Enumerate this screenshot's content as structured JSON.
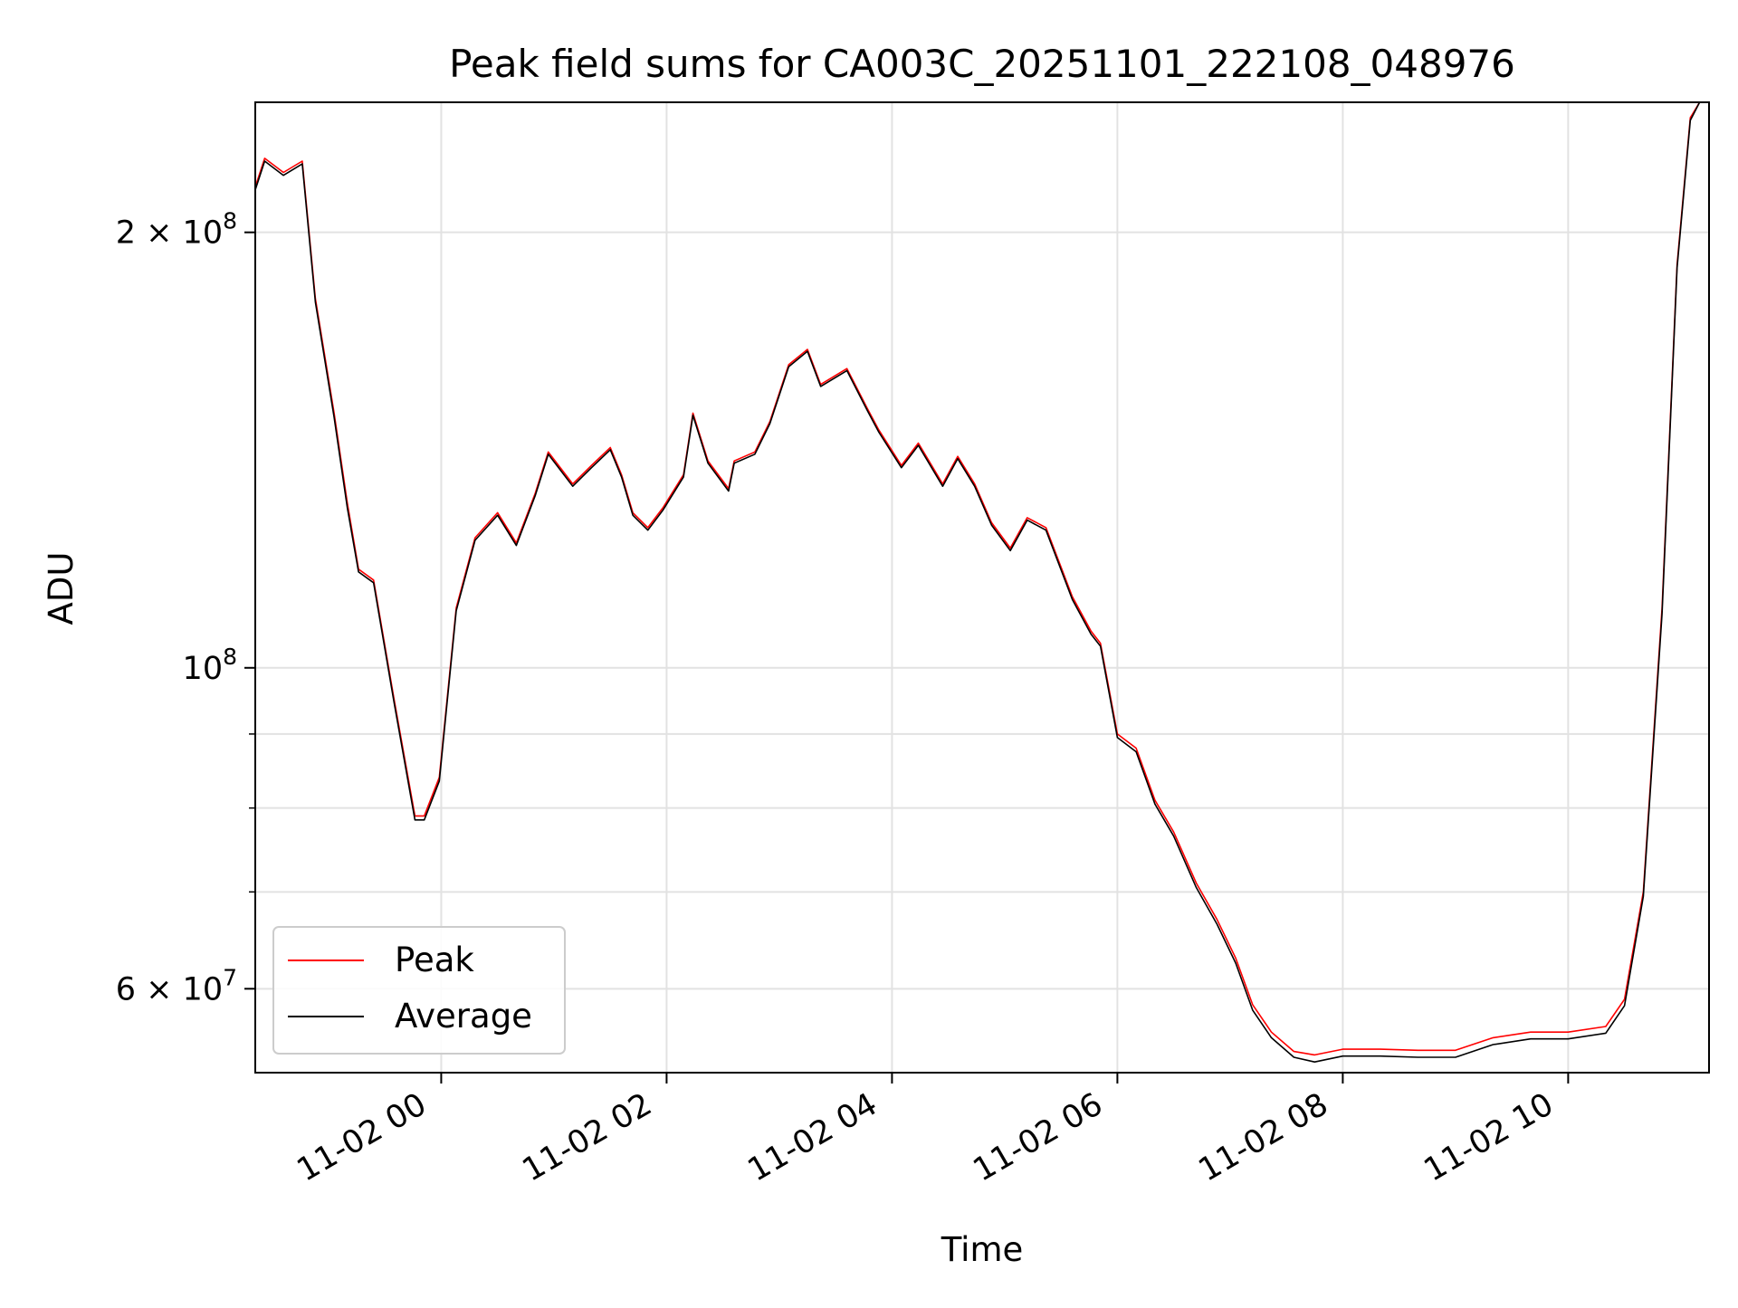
{
  "chart_data": {
    "type": "line",
    "title": "Peak field sums for CA003C_20251101_222108_048976",
    "xlabel": "Time",
    "ylabel": "ADU",
    "yscale": "log",
    "grid": true,
    "legend_position": "lower-left",
    "xlim": [
      "2025-11-01 22:21",
      "2025-11-02 11:15"
    ],
    "ylim": [
      52500000,
      246000000
    ],
    "x_ticks": [
      "2025-11-02 00:00",
      "2025-11-02 02:00",
      "2025-11-02 04:00",
      "2025-11-02 06:00",
      "2025-11-02 08:00",
      "2025-11-02 10:00"
    ],
    "x_tick_labels": [
      "11-02 00",
      "11-02 02",
      "11-02 04",
      "11-02 06",
      "11-02 08",
      "11-02 10"
    ],
    "y_ticks_major": [
      60000000,
      100000000,
      200000000
    ],
    "y_tick_labels": [
      {
        "base": "6",
        "exp": "7",
        "value": 60000000
      },
      {
        "base": "",
        "exp": "8",
        "value": 100000000
      },
      {
        "base": "2",
        "exp": "8",
        "value": 200000000
      }
    ],
    "y_ticks_minor": [
      70000000,
      80000000,
      90000000
    ],
    "series": [
      {
        "name": "Peak",
        "color": "#ff0000",
        "x": [
          "2025-11-01 22:21",
          "2025-11-01 22:26",
          "2025-11-01 22:36",
          "2025-11-01 22:46",
          "2025-11-01 22:53",
          "2025-11-01 23:03",
          "2025-11-01 23:10",
          "2025-11-01 23:16",
          "2025-11-01 23:24",
          "2025-11-01 23:35",
          "2025-11-01 23:46",
          "2025-11-01 23:51",
          "2025-11-01 23:59",
          "2025-11-02 00:08",
          "2025-11-02 00:18",
          "2025-11-02 00:30",
          "2025-11-02 00:40",
          "2025-11-02 00:50",
          "2025-11-02 00:57",
          "2025-11-02 01:10",
          "2025-11-02 01:20",
          "2025-11-02 01:30",
          "2025-11-02 01:36",
          "2025-11-02 01:42",
          "2025-11-02 01:50",
          "2025-11-02 01:58",
          "2025-11-02 02:09",
          "2025-11-02 02:14",
          "2025-11-02 02:22",
          "2025-11-02 02:33",
          "2025-11-02 02:36",
          "2025-11-02 02:47",
          "2025-11-02 02:55",
          "2025-11-02 03:05",
          "2025-11-02 03:15",
          "2025-11-02 03:22",
          "2025-11-02 03:36",
          "2025-11-02 03:47",
          "2025-11-02 03:53",
          "2025-11-02 04:05",
          "2025-11-02 04:14",
          "2025-11-02 04:27",
          "2025-11-02 04:35",
          "2025-11-02 04:44",
          "2025-11-02 04:53",
          "2025-11-02 05:03",
          "2025-11-02 05:12",
          "2025-11-02 05:22",
          "2025-11-02 05:36",
          "2025-11-02 05:46",
          "2025-11-02 05:51",
          "2025-11-02 06:00",
          "2025-11-02 06:10",
          "2025-11-02 06:20",
          "2025-11-02 06:30",
          "2025-11-02 06:42",
          "2025-11-02 06:53",
          "2025-11-02 07:03",
          "2025-11-02 07:12",
          "2025-11-02 07:22",
          "2025-11-02 07:34",
          "2025-11-02 07:45",
          "2025-11-02 08:00",
          "2025-11-02 08:20",
          "2025-11-02 08:40",
          "2025-11-02 09:00",
          "2025-11-02 09:20",
          "2025-11-02 09:40",
          "2025-11-02 10:00",
          "2025-11-02 10:20",
          "2025-11-02 10:30",
          "2025-11-02 10:40",
          "2025-11-02 10:50",
          "2025-11-02 10:58",
          "2025-11-02 11:05",
          "2025-11-02 11:10",
          "2025-11-02 11:15"
        ],
        "y": [
          215000000,
          225000000,
          220000000,
          224000000,
          180000000,
          150000000,
          130000000,
          117000000,
          115000000,
          95000000,
          79000000,
          79000000,
          84000000,
          110000000,
          123000000,
          128000000,
          122000000,
          132000000,
          141000000,
          134000000,
          138000000,
          142000000,
          136000000,
          128000000,
          125000000,
          129000000,
          136000000,
          150000000,
          139000000,
          133000000,
          139000000,
          141000000,
          148000000,
          162000000,
          166000000,
          157000000,
          161000000,
          151000000,
          146000000,
          138000000,
          143000000,
          134000000,
          140000000,
          134000000,
          126000000,
          121000000,
          127000000,
          125000000,
          112000000,
          106000000,
          104000000,
          90000000,
          88000000,
          81000000,
          77000000,
          71000000,
          67000000,
          63000000,
          58500000,
          56000000,
          54300000,
          54000000,
          54500000,
          54500000,
          54400000,
          54400000,
          55500000,
          56000000,
          56000000,
          56500000,
          59000000,
          70000000,
          110000000,
          190000000,
          240000000,
          246000000,
          246000000
        ]
      },
      {
        "name": "Average",
        "color": "#000000",
        "x": [
          "2025-11-01 22:21",
          "2025-11-01 22:26",
          "2025-11-01 22:36",
          "2025-11-01 22:46",
          "2025-11-01 22:53",
          "2025-11-01 23:03",
          "2025-11-01 23:10",
          "2025-11-01 23:16",
          "2025-11-01 23:24",
          "2025-11-01 23:35",
          "2025-11-01 23:46",
          "2025-11-01 23:51",
          "2025-11-01 23:59",
          "2025-11-02 00:08",
          "2025-11-02 00:18",
          "2025-11-02 00:30",
          "2025-11-02 00:40",
          "2025-11-02 00:50",
          "2025-11-02 00:57",
          "2025-11-02 01:10",
          "2025-11-02 01:20",
          "2025-11-02 01:30",
          "2025-11-02 01:36",
          "2025-11-02 01:42",
          "2025-11-02 01:50",
          "2025-11-02 01:58",
          "2025-11-02 02:09",
          "2025-11-02 02:14",
          "2025-11-02 02:22",
          "2025-11-02 02:33",
          "2025-11-02 02:36",
          "2025-11-02 02:47",
          "2025-11-02 02:55",
          "2025-11-02 03:05",
          "2025-11-02 03:15",
          "2025-11-02 03:22",
          "2025-11-02 03:36",
          "2025-11-02 03:47",
          "2025-11-02 03:53",
          "2025-11-02 04:05",
          "2025-11-02 04:14",
          "2025-11-02 04:27",
          "2025-11-02 04:35",
          "2025-11-02 04:44",
          "2025-11-02 04:53",
          "2025-11-02 05:03",
          "2025-11-02 05:12",
          "2025-11-02 05:22",
          "2025-11-02 05:36",
          "2025-11-02 05:46",
          "2025-11-02 05:51",
          "2025-11-02 06:00",
          "2025-11-02 06:10",
          "2025-11-02 06:20",
          "2025-11-02 06:30",
          "2025-11-02 06:42",
          "2025-11-02 06:53",
          "2025-11-02 07:03",
          "2025-11-02 07:12",
          "2025-11-02 07:22",
          "2025-11-02 07:34",
          "2025-11-02 07:45",
          "2025-11-02 08:00",
          "2025-11-02 08:20",
          "2025-11-02 08:40",
          "2025-11-02 09:00",
          "2025-11-02 09:20",
          "2025-11-02 09:40",
          "2025-11-02 10:00",
          "2025-11-02 10:20",
          "2025-11-02 10:30",
          "2025-11-02 10:40",
          "2025-11-02 10:50",
          "2025-11-02 10:58",
          "2025-11-02 11:05",
          "2025-11-02 11:10",
          "2025-11-02 11:15"
        ],
        "y": [
          214000000,
          224000000,
          219000000,
          223000000,
          179000000,
          149000000,
          129000000,
          116500000,
          114500000,
          94500000,
          78500000,
          78500000,
          83500000,
          109500000,
          122500000,
          127500000,
          121500000,
          131500000,
          140500000,
          133500000,
          137500000,
          141500000,
          135500000,
          127500000,
          124500000,
          128500000,
          135500000,
          149500000,
          138500000,
          132500000,
          138500000,
          140500000,
          147500000,
          161500000,
          165500000,
          156500000,
          160500000,
          150500000,
          145500000,
          137500000,
          142500000,
          133500000,
          139500000,
          133500000,
          125500000,
          120500000,
          126500000,
          124500000,
          111500000,
          105500000,
          103500000,
          89500000,
          87500000,
          80500000,
          76500000,
          70500000,
          66500000,
          62500000,
          58000000,
          55500000,
          53800000,
          53400000,
          53900000,
          53900000,
          53800000,
          53800000,
          54900000,
          55400000,
          55400000,
          55900000,
          58400000,
          69500000,
          109000000,
          189000000,
          239000000,
          246000000,
          246000000
        ]
      }
    ]
  }
}
